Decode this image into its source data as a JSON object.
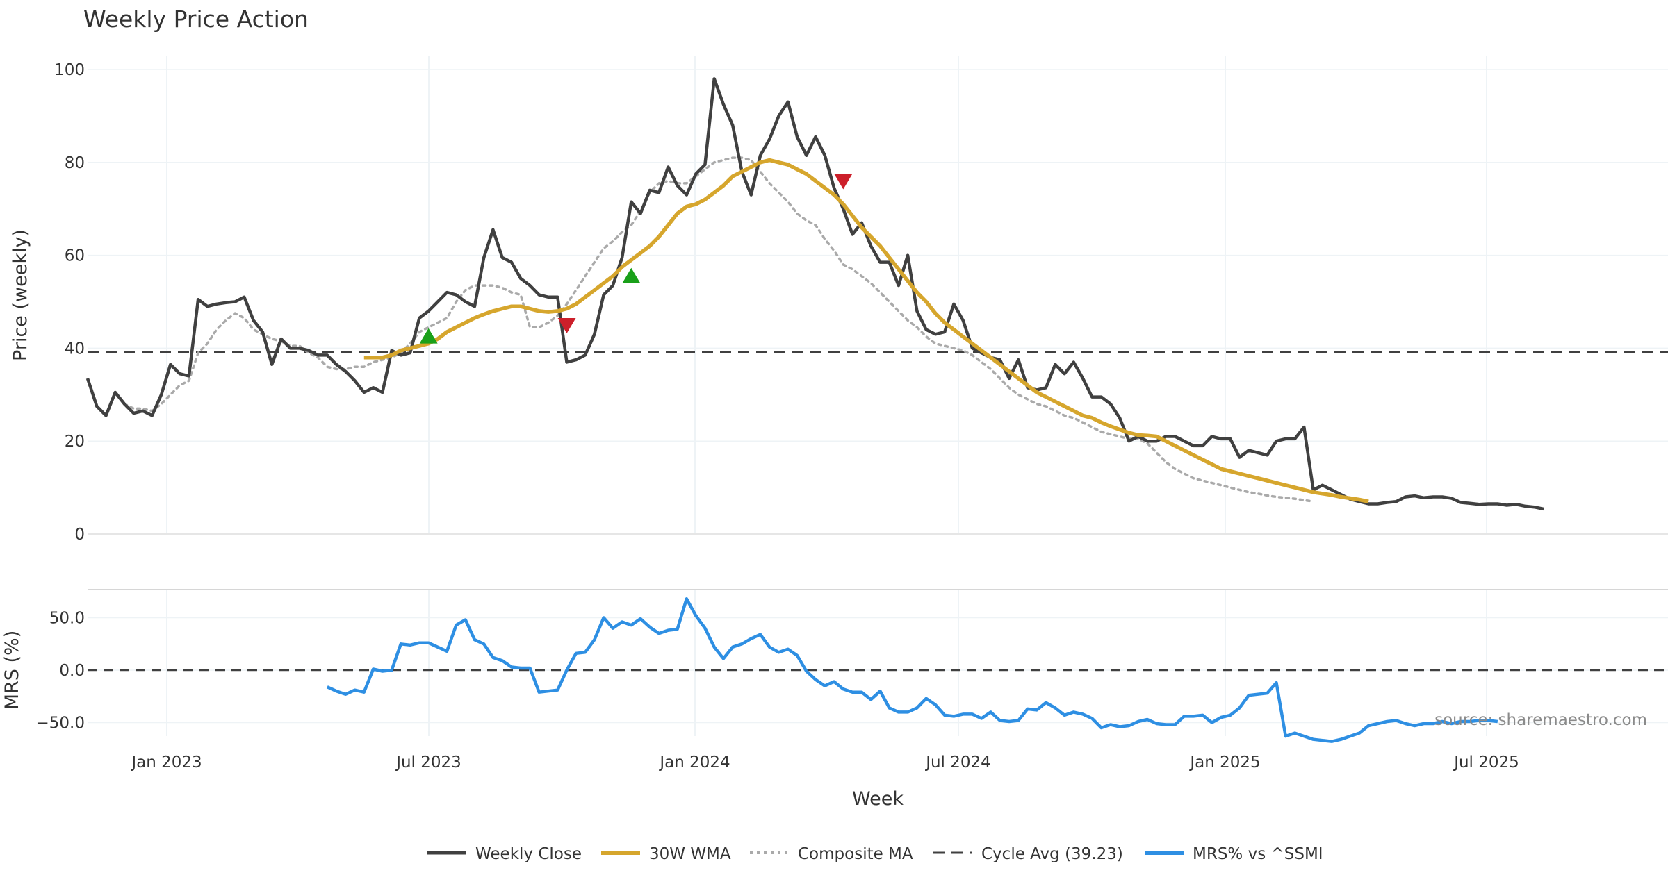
{
  "chart_data": {
    "type": "line",
    "title": "Weekly Price Action",
    "source": "source: sharemaestro.com",
    "x_axis": {
      "label": "Week",
      "ticks": [
        "Jan 2023",
        "Jul 2023",
        "Jan 2024",
        "Jul 2024",
        "Jan 2025",
        "Jul 2025"
      ],
      "start": "2022-11-14",
      "weeks": 160
    },
    "price_panel": {
      "ylabel": "Price (weekly)",
      "ylim": [
        0,
        103
      ],
      "yticks": [
        "0",
        "20",
        "40",
        "60",
        "80",
        "100"
      ],
      "cycle_avg": 39.23,
      "series": [
        {
          "name": "Weekly Close",
          "color": "#404040",
          "start_index": 0,
          "values": [
            33.5,
            27.5,
            25.5,
            30.5,
            28,
            26,
            26.5,
            25.5,
            30,
            36.5,
            34.5,
            34,
            50.5,
            49,
            49.5,
            49.8,
            50,
            51,
            46,
            43.5,
            36.5,
            42,
            40,
            40,
            39.5,
            38.5,
            38.5,
            36.5,
            35,
            33,
            30.5,
            31.5,
            30.5,
            39.5,
            38.5,
            39,
            46.5,
            48,
            50,
            52,
            51.5,
            50,
            49,
            59.5,
            65.5,
            59.5,
            58.5,
            55,
            53.5,
            51.5,
            51,
            51,
            37,
            37.5,
            38.5,
            43,
            51.5,
            53.5,
            59.5,
            71.5,
            69,
            74,
            73.5,
            79,
            75,
            73,
            77.5,
            79.5,
            98,
            92.5,
            88,
            78,
            73,
            81.5,
            85,
            90,
            93,
            85.5,
            81.5,
            85.5,
            81.5,
            74.5,
            70,
            64.5,
            67,
            62,
            58.5,
            58.5,
            53.5,
            60,
            48,
            44,
            43,
            43.5,
            49.5,
            46,
            40,
            39,
            38,
            37.5,
            33.5,
            37.5,
            31.5,
            31,
            31.5,
            36.5,
            34.5,
            37,
            33.5,
            29.5,
            29.5,
            28,
            25,
            20,
            21,
            20,
            20,
            21,
            21,
            20,
            19,
            19,
            21,
            20.5,
            20.5,
            16.5,
            18,
            17.5,
            17,
            20,
            20.5,
            20.5,
            23,
            9.5,
            10.5,
            9.5,
            8.5,
            7.5,
            7,
            6.5,
            6.5,
            6.8,
            7,
            8,
            8.2,
            7.8,
            8,
            8,
            7.7,
            6.8,
            6.6,
            6.4,
            6.5,
            6.5,
            6.2,
            6.4,
            6,
            5.8,
            5.4
          ]
        },
        {
          "name": "30W WMA",
          "color": "#d6a62d",
          "start_index": 30,
          "values": [
            38,
            38,
            38,
            38.5,
            39.5,
            40,
            40.5,
            41,
            42,
            43.5,
            44.5,
            45.5,
            46.5,
            47.3,
            48,
            48.5,
            49,
            49,
            48.5,
            48,
            47.8,
            48,
            48.5,
            49.5,
            51,
            52.5,
            54,
            55.5,
            57.5,
            59,
            60.5,
            62,
            64,
            66.5,
            69,
            70.5,
            71,
            72,
            73.5,
            75,
            77,
            78,
            79,
            80,
            80.5,
            80,
            79.5,
            78.5,
            77.5,
            76,
            74.5,
            73,
            71,
            68.5,
            66,
            64,
            62,
            59.5,
            57,
            54.5,
            52,
            50,
            47.5,
            45.5,
            44,
            42.5,
            41,
            39.5,
            38,
            36.5,
            35,
            33.5,
            32,
            30.5,
            29.5,
            28.5,
            27.5,
            26.5,
            25.5,
            25,
            24,
            23.2,
            22.5,
            21.8,
            21.3,
            21.2,
            21,
            20,
            19,
            18,
            17,
            16,
            15,
            14,
            13.5,
            13,
            12.5,
            12,
            11.5,
            11,
            10.5,
            10,
            9.5,
            9,
            8.7,
            8.4,
            8,
            7.7,
            7.4,
            7
          ]
        },
        {
          "name": "Composite MA",
          "color": "#aaaaaa",
          "start_index": 4,
          "values": [
            28,
            27,
            27,
            26.5,
            28,
            30,
            32,
            33,
            39,
            41,
            44,
            46,
            47.5,
            46.5,
            44,
            43,
            42,
            41.5,
            40.5,
            40.5,
            39,
            38,
            36,
            35.5,
            35.5,
            36,
            36,
            37,
            37.5,
            38,
            39,
            41,
            43.5,
            44.5,
            45.5,
            46.5,
            50,
            52.5,
            53.5,
            53.5,
            53.5,
            53,
            52,
            51.5,
            44.5,
            44.5,
            45.5,
            47,
            49.5,
            52.5,
            55.5,
            58.5,
            61.5,
            63,
            65,
            66.5,
            69.5,
            73.5,
            75.5,
            76,
            75.5,
            75.5,
            77,
            78.5,
            80,
            80.5,
            81,
            81,
            80.5,
            78,
            75.5,
            73.5,
            71.5,
            69,
            67.5,
            66.5,
            63.5,
            61,
            58,
            57,
            55.5,
            54,
            52,
            50,
            48,
            46,
            44.5,
            42.5,
            41,
            40.5,
            40,
            39.5,
            38.5,
            37,
            35.5,
            33.5,
            31.5,
            30,
            29,
            28,
            27.5,
            26.5,
            25.5,
            25,
            24,
            23,
            22,
            21.5,
            21,
            20.5,
            20.5,
            19.5,
            17.5,
            15.5,
            14,
            13,
            12,
            11.5,
            11,
            10.5,
            10,
            9.5,
            9,
            8.7,
            8.3,
            8,
            7.8,
            7.6,
            7.3,
            7
          ]
        },
        {
          "name": "Cycle Avg (39.23)",
          "color": "#404040",
          "style": "dashed",
          "value": 39.23
        }
      ],
      "signals": [
        {
          "type": "buy",
          "week_index": 37,
          "value": 42.5,
          "color": "#1aa01a"
        },
        {
          "type": "sell",
          "week_index": 52,
          "value": 45,
          "color": "#cc1f2a"
        },
        {
          "type": "buy",
          "week_index": 59,
          "value": 55.5,
          "color": "#1aa01a"
        },
        {
          "type": "sell",
          "week_index": 82,
          "value": 76,
          "color": "#cc1f2a"
        }
      ]
    },
    "mrs_panel": {
      "ylabel": "MRS (%)",
      "ylim": [
        -65,
        70
      ],
      "yticks": [
        "50.0",
        "0.0",
        "−50.0"
      ],
      "zero_line": 0,
      "series": [
        {
          "name": "MRS% vs ^SSMI",
          "color": "#2e8fe3",
          "start_index": 26,
          "values": [
            -16,
            -20,
            -23,
            -19,
            -21,
            1,
            -1,
            0,
            25,
            24,
            26,
            26,
            22,
            18,
            43,
            48,
            29,
            25,
            12,
            9,
            3,
            2,
            2,
            -21,
            -20,
            -19,
            0,
            16,
            17,
            29,
            50,
            40,
            46,
            43,
            49,
            41,
            35,
            38,
            39,
            68,
            52,
            40,
            22,
            11,
            22,
            25,
            30,
            34,
            22,
            17,
            20,
            14,
            -1,
            -9,
            -15,
            -11,
            -18,
            -21,
            -21,
            -28,
            -20,
            -36,
            -40,
            -40,
            -36,
            -27,
            -33,
            -43,
            -44,
            -42,
            -42,
            -46,
            -40,
            -48,
            -49,
            -48,
            -37,
            -38,
            -31,
            -36,
            -43,
            -40,
            -42,
            -46,
            -55,
            -52,
            -54,
            -53,
            -49,
            -47,
            -51,
            -52,
            -52,
            -44,
            -44,
            -43,
            -50,
            -45,
            -43,
            -36,
            -24,
            -23,
            -22,
            -12,
            -63,
            -60,
            -63,
            -66,
            -67,
            -68,
            -66,
            -63,
            -60,
            -53,
            -51,
            -49,
            -48,
            -51,
            -53,
            -51,
            -51,
            -49,
            -51,
            -49,
            -49,
            -48,
            -48,
            -49
          ]
        }
      ]
    },
    "legend": [
      "Weekly Close",
      "30W WMA",
      "Composite MA",
      "Cycle Avg (39.23)",
      "MRS% vs ^SSMI"
    ]
  }
}
